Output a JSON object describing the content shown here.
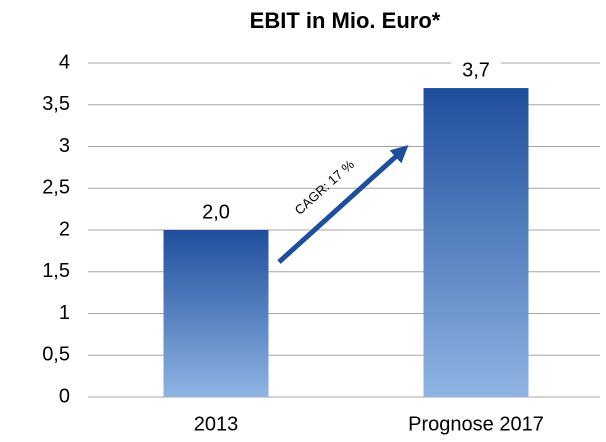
{
  "chart_data": {
    "type": "bar",
    "title": "EBIT in Mio. Euro*",
    "categories": [
      "2013",
      "Prognose 2017"
    ],
    "values": [
      2.0,
      3.7
    ],
    "value_labels": [
      "2,0",
      "3,7"
    ],
    "color_top": "#1f4e9c",
    "color_bottom": "#8eb4e3",
    "ylim": [
      0,
      4
    ],
    "yticks": [
      0,
      {
        "value": 0.5,
        "label": "0,5"
      },
      1,
      {
        "value": 1.5,
        "label": "1,5"
      },
      2,
      {
        "value": 2.5,
        "label": "2,5"
      },
      3,
      {
        "value": 3.5,
        "label": "3,5"
      },
      4
    ],
    "grid": true,
    "annotation": "CAGR: 17 %"
  }
}
